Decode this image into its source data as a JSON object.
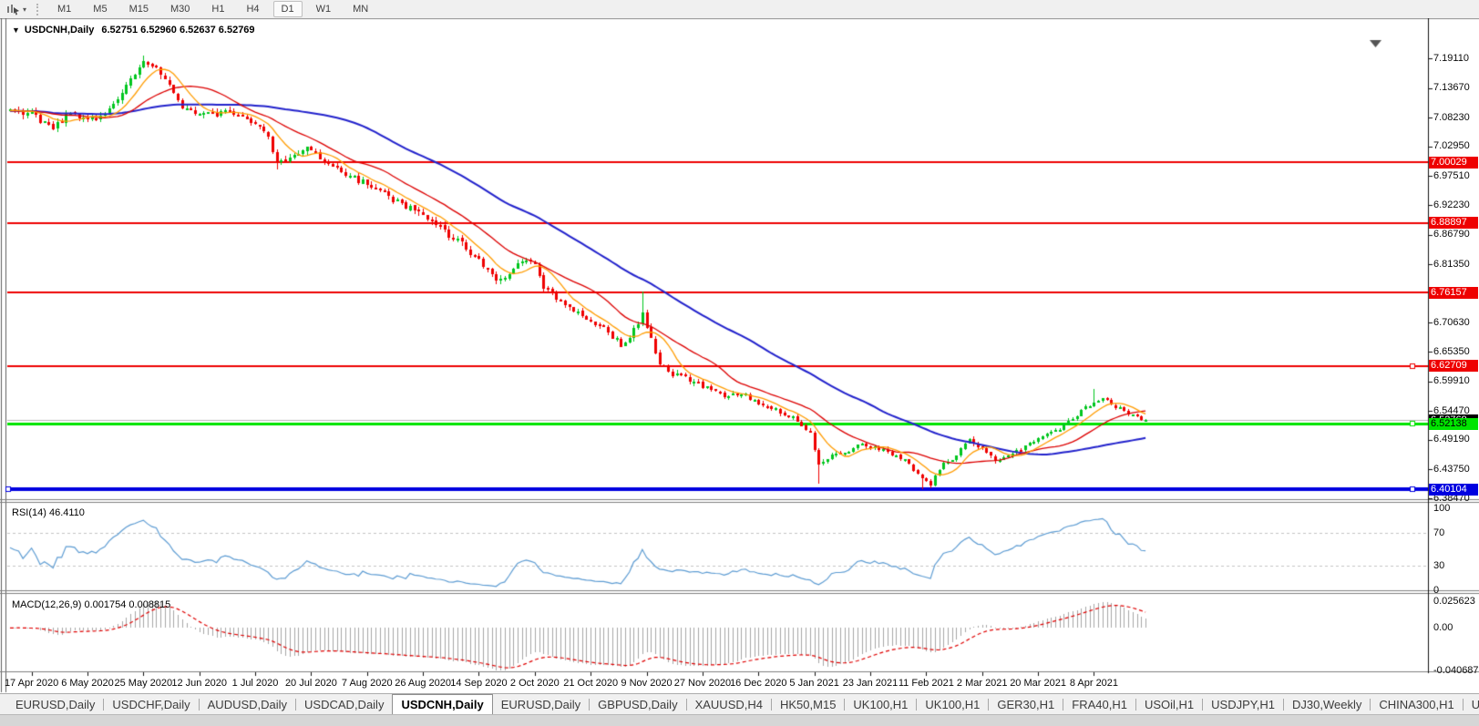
{
  "toolbar": {
    "tools_icon": "chart-cursor-icon",
    "dropdown_glyph": "▾",
    "timeframes": [
      "M1",
      "M5",
      "M15",
      "M30",
      "H1",
      "H4",
      "D1",
      "W1",
      "MN"
    ],
    "active_timeframe": "D1"
  },
  "chart": {
    "title_dropdown_glyph": "▼",
    "title": "USDCNH,Daily",
    "ohlc": "6.52751 6.52960 6.52637 6.52769"
  },
  "chart_data": {
    "type": "candlestick",
    "symbol": "USDCNH",
    "timeframe": "Daily",
    "last_ohlc": {
      "open": 6.52751,
      "high": 6.5296,
      "low": 6.52637,
      "close": 6.52769
    },
    "price_axis": {
      "ticks": [
        {
          "label": "7.19110",
          "price": 7.1911
        },
        {
          "label": "7.13670",
          "price": 7.1367
        },
        {
          "label": "7.08230",
          "price": 7.0823
        },
        {
          "label": "7.02950",
          "price": 7.0295
        },
        {
          "label": "6.97510",
          "price": 6.9751
        },
        {
          "label": "6.92230",
          "price": 6.9223
        },
        {
          "label": "6.86790",
          "price": 6.8679
        },
        {
          "label": "6.81350",
          "price": 6.8135
        },
        {
          "label": "6.70630",
          "price": 6.7063
        },
        {
          "label": "6.65350",
          "price": 6.6535
        },
        {
          "label": "6.59910",
          "price": 6.5991
        },
        {
          "label": "6.54470",
          "price": 6.5447
        },
        {
          "label": "6.49190",
          "price": 6.4919
        },
        {
          "label": "6.43750",
          "price": 6.4375
        },
        {
          "label": "6.38470",
          "price": 6.3847
        }
      ]
    },
    "hlines": [
      {
        "price": 7.00029,
        "label": "7.00029",
        "color": "#ee0000",
        "text_color": "#ffffff",
        "thickness": 2,
        "handles": []
      },
      {
        "price": 6.88897,
        "label": "6.88897",
        "color": "#ee0000",
        "text_color": "#ffffff",
        "thickness": 2,
        "handles": []
      },
      {
        "price": 6.76157,
        "label": "6.76157",
        "color": "#ee0000",
        "text_color": "#ffffff",
        "thickness": 2,
        "handles": []
      },
      {
        "price": 6.62709,
        "label": "6.62709",
        "color": "#ee0000",
        "text_color": "#ffffff",
        "thickness": 2,
        "handles": [
          "right"
        ]
      },
      {
        "price": 6.52138,
        "label": "6.52138",
        "color": "#00e400",
        "text_color": "#000000",
        "thickness": 3,
        "handles": [
          "right"
        ]
      },
      {
        "price": 6.40104,
        "label": "6.40104",
        "color": "#0000e0",
        "text_color": "#ffffff",
        "thickness": 4,
        "handles": [
          "left",
          "right"
        ]
      }
    ],
    "current_price": {
      "label": "6.52769",
      "price": 6.52769,
      "line_color": "#b8b8b8",
      "box_color": "#000000",
      "text_color": "#ffffff"
    },
    "date_axis": [
      "17 Apr 2020",
      "6 May 2020",
      "25 May 2020",
      "12 Jun 2020",
      "1 Jul 2020",
      "20 Jul 2020",
      "7 Aug 2020",
      "26 Aug 2020",
      "14 Sep 2020",
      "2 Oct 2020",
      "21 Oct 2020",
      "9 Nov 2020",
      "27 Nov 2020",
      "16 Dec 2020",
      "5 Jan 2021",
      "23 Jan 2021",
      "11 Feb 2021",
      "2 Mar 2021",
      "20 Mar 2021",
      "8 Apr 2021"
    ],
    "bars_per_tick": 13,
    "first_tick_bar": 5,
    "candle_count": 265,
    "series_anchors": [
      [
        0,
        7.095
      ],
      [
        5,
        7.09
      ],
      [
        10,
        7.062
      ],
      [
        14,
        7.095
      ],
      [
        18,
        7.075
      ],
      [
        23,
        7.1
      ],
      [
        28,
        7.148
      ],
      [
        31,
        7.19
      ],
      [
        34,
        7.178
      ],
      [
        37,
        7.14
      ],
      [
        40,
        7.103
      ],
      [
        45,
        7.086
      ],
      [
        50,
        7.092
      ],
      [
        55,
        7.078
      ],
      [
        58,
        7.068
      ],
      [
        60,
        7.045
      ],
      [
        62,
        7.005
      ],
      [
        66,
        7.012
      ],
      [
        70,
        7.028
      ],
      [
        74,
        6.996
      ],
      [
        79,
        6.976
      ],
      [
        84,
        6.956
      ],
      [
        89,
        6.932
      ],
      [
        94,
        6.912
      ],
      [
        99,
        6.886
      ],
      [
        104,
        6.856
      ],
      [
        109,
        6.818
      ],
      [
        113,
        6.783
      ],
      [
        116,
        6.792
      ],
      [
        119,
        6.822
      ],
      [
        122,
        6.812
      ],
      [
        124,
        6.772
      ],
      [
        127,
        6.748
      ],
      [
        131,
        6.732
      ],
      [
        135,
        6.712
      ],
      [
        139,
        6.688
      ],
      [
        142,
        6.666
      ],
      [
        145,
        6.692
      ],
      [
        147,
        6.722
      ],
      [
        149,
        6.682
      ],
      [
        151,
        6.628
      ],
      [
        154,
        6.612
      ],
      [
        158,
        6.602
      ],
      [
        162,
        6.588
      ],
      [
        166,
        6.572
      ],
      [
        170,
        6.578
      ],
      [
        174,
        6.558
      ],
      [
        178,
        6.548
      ],
      [
        182,
        6.532
      ],
      [
        186,
        6.502
      ],
      [
        188,
        6.445
      ],
      [
        190,
        6.458
      ],
      [
        194,
        6.472
      ],
      [
        198,
        6.482
      ],
      [
        202,
        6.477
      ],
      [
        206,
        6.462
      ],
      [
        209,
        6.447
      ],
      [
        212,
        6.422
      ],
      [
        214,
        6.412
      ],
      [
        217,
        6.452
      ],
      [
        220,
        6.462
      ],
      [
        223,
        6.492
      ],
      [
        226,
        6.477
      ],
      [
        229,
        6.457
      ],
      [
        232,
        6.462
      ],
      [
        236,
        6.482
      ],
      [
        240,
        6.497
      ],
      [
        244,
        6.512
      ],
      [
        248,
        6.537
      ],
      [
        251,
        6.557
      ],
      [
        254,
        6.567
      ],
      [
        257,
        6.552
      ],
      [
        260,
        6.541
      ],
      [
        262,
        6.533
      ],
      [
        264,
        6.52769
      ]
    ],
    "wick_events": [
      {
        "bar": 31,
        "high": 7.1962
      },
      {
        "bar": 62,
        "low": 6.989
      },
      {
        "bar": 127,
        "low": 6.746
      },
      {
        "bar": 147,
        "high": 6.764
      },
      {
        "bar": 188,
        "low": 6.413
      },
      {
        "bar": 212,
        "low": 6.402
      },
      {
        "bar": 252,
        "high": 6.585
      }
    ],
    "colors": {
      "up": "#00c61e",
      "down": "#ef0000",
      "ma_fast": "#ff9c00",
      "ma_mid": "#dd0000",
      "ma_slow": "#2222cc"
    },
    "moving_averages": [
      {
        "name": "MA fast",
        "period": 8,
        "color_key": "ma_fast"
      },
      {
        "name": "MA mid",
        "period": 20,
        "color_key": "ma_mid"
      },
      {
        "name": "MA slow",
        "period": 55,
        "color_key": "ma_slow"
      }
    ],
    "indicators": {
      "rsi": {
        "label": "RSI(14) 46.4110",
        "period": 14,
        "current": 46.411,
        "levels": [
          70,
          30
        ],
        "axis_labels": [
          {
            "text": "100",
            "value": 100
          },
          {
            "text": "70",
            "value": 70
          },
          {
            "text": "30",
            "value": 30
          },
          {
            "text": "0",
            "value": 0
          }
        ],
        "color": "#5d9cd3"
      },
      "macd": {
        "label": "MACD(12,26,9) 0.001754 0.008815",
        "fast": 12,
        "slow": 26,
        "signal": 9,
        "main_current": 0.001754,
        "signal_current": 0.008815,
        "axis_labels": [
          {
            "text": "0.025623",
            "value": 0.025623
          },
          {
            "text": "0.00",
            "value": 0.0
          },
          {
            "text": "-0.040687",
            "value": -0.040687
          }
        ],
        "histogram_color": "#a6a6a6",
        "signal_color": "#e00000"
      }
    }
  },
  "tabs": {
    "items": [
      {
        "label": "EURUSD,Daily",
        "active": false
      },
      {
        "label": "USDCHF,Daily",
        "active": false
      },
      {
        "label": "AUDUSD,Daily",
        "active": false
      },
      {
        "label": "USDCAD,Daily",
        "active": false
      },
      {
        "label": "USDCNH,Daily",
        "active": true
      },
      {
        "label": "EURUSD,Daily",
        "active": false
      },
      {
        "label": "GBPUSD,Daily",
        "active": false
      },
      {
        "label": "XAUUSD,H4",
        "active": false
      },
      {
        "label": "HK50,M15",
        "active": false
      },
      {
        "label": "UK100,H1",
        "active": false
      },
      {
        "label": "UK100,H1",
        "active": false
      },
      {
        "label": "GER30,H1",
        "active": false
      },
      {
        "label": "FRA40,H1",
        "active": false
      },
      {
        "label": "USOil,H1",
        "active": false
      },
      {
        "label": "USDJPY,H1",
        "active": false
      },
      {
        "label": "DJ30,Weekly",
        "active": false
      },
      {
        "label": "CHINA300,H1",
        "active": false
      },
      {
        "label": "U",
        "active": false
      }
    ],
    "scroll_icons": {
      "left": "◄",
      "right": "►"
    }
  }
}
